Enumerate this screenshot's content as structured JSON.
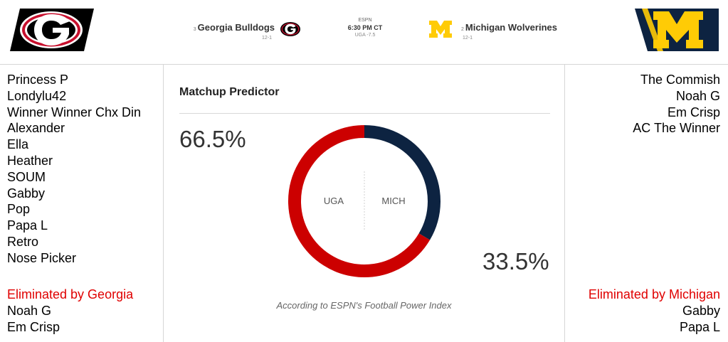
{
  "header": {
    "left_team": {
      "rank": "3",
      "name": "Georgia Bulldogs",
      "record": "12-1"
    },
    "right_team": {
      "rank": "2",
      "name": "Michigan Wolverines",
      "record": "12-1"
    },
    "game": {
      "network": "ESPN",
      "time": "6:30 PM CT",
      "line": "UGA -7.5"
    }
  },
  "left_column": {
    "names": [
      "Princess P",
      "Londylu42",
      "Winner Winner Chx Din",
      "Alexander",
      "Ella",
      "Heather",
      "SOUM",
      "Gabby",
      "Pop",
      "Papa L",
      "Retro",
      "Nose Picker"
    ],
    "eliminated_title": "Eliminated by Georgia",
    "eliminated": [
      "Noah G",
      "Em Crisp"
    ]
  },
  "right_column": {
    "names": [
      "The Commish",
      "Noah G",
      "Em Crisp",
      "AC The Winner"
    ],
    "eliminated_title": "Eliminated by Michigan",
    "eliminated": [
      "Gabby",
      "Papa L"
    ]
  },
  "predictor": {
    "title": "Matchup Predictor",
    "left_pct": "66.5%",
    "right_pct": "33.5%",
    "left_label": "UGA",
    "right_label": "MICH",
    "left_value": 66.5,
    "right_value": 33.5,
    "footnote": "According to ESPN's Football Power Index"
  },
  "colors": {
    "uga_red": "#cc0000",
    "mich_navy": "#0d2341",
    "elim_red": "#e00000",
    "maize": "#ffcb05"
  },
  "icons": {
    "left_logo": "georgia-g-logo",
    "right_logo": "michigan-block-m-logo"
  }
}
